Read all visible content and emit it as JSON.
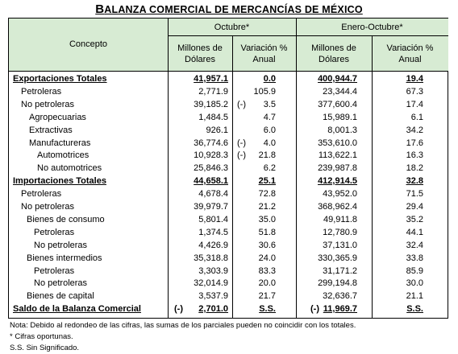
{
  "title": "BALANZA COMERCIAL DE MERCANCÍAS DE MÉXICO",
  "table": {
    "header": {
      "concept": "Concepto",
      "periods": [
        "Octubre*",
        "Enero-Octubre*"
      ],
      "columns": [
        "Millones de Dólares",
        "Variación % Anual",
        "Millones de Dólares",
        "Variación % Anual"
      ]
    },
    "rows": [
      {
        "label": "Exportaciones Totales",
        "cells": [
          "41,957.1",
          "0.0",
          "400,944.7",
          "19.4"
        ]
      },
      {
        "label": "Petroleras",
        "cells": [
          "2,771.9",
          "105.9",
          "23,344.4",
          "67.3"
        ]
      },
      {
        "label": "No petroleras",
        "cells": [
          "39,185.2",
          {
            "prefix": "(-)",
            "text": "3.5"
          },
          "377,600.4",
          "17.4"
        ]
      },
      {
        "label": "Agropecuarias",
        "cells": [
          "1,484.5",
          "4.7",
          "15,989.1",
          "6.1"
        ]
      },
      {
        "label": "Extractivas",
        "cells": [
          "926.1",
          "6.0",
          "8,001.3",
          "34.2"
        ]
      },
      {
        "label": "Manufactureras",
        "cells": [
          "36,774.6",
          {
            "prefix": "(-)",
            "text": "4.0"
          },
          "353,610.0",
          "17.6"
        ]
      },
      {
        "label": "Automotrices",
        "cells": [
          "10,928.3",
          {
            "prefix": "(-)",
            "text": "21.8"
          },
          "113,622.1",
          "16.3"
        ]
      },
      {
        "label": "No automotrices",
        "cells": [
          "25,846.3",
          "6.2",
          "239,987.8",
          "18.2"
        ]
      },
      {
        "label": "Importaciones Totales",
        "cells": [
          "44,658.1",
          "25.1",
          "412,914.5",
          "32.8"
        ]
      },
      {
        "label": "Petroleras",
        "cells": [
          "4,678.4",
          "72.8",
          "43,952.0",
          "71.5"
        ]
      },
      {
        "label": "No petroleras",
        "cells": [
          "39,979.7",
          "21.2",
          "368,962.4",
          "29.4"
        ]
      },
      {
        "label": "Bienes de consumo",
        "cells": [
          "5,801.4",
          "35.0",
          "49,911.8",
          "35.2"
        ]
      },
      {
        "label": "Petroleras",
        "cells": [
          "1,374.5",
          "51.8",
          "12,780.9",
          "44.1"
        ]
      },
      {
        "label": "No petroleras",
        "cells": [
          "4,426.9",
          "30.6",
          "37,131.0",
          "32.4"
        ]
      },
      {
        "label": "Bienes intermedios",
        "cells": [
          "35,318.8",
          "24.0",
          "330,365.9",
          "33.8"
        ]
      },
      {
        "label": "Petroleras",
        "cells": [
          "3,303.9",
          "83.3",
          "31,171.2",
          "85.9"
        ]
      },
      {
        "label": "No petroleras",
        "cells": [
          "32,014.9",
          "20.0",
          "299,194.8",
          "30.0"
        ]
      },
      {
        "label": "Bienes de capital",
        "cells": [
          "3,537.9",
          "21.7",
          "32,636.7",
          "21.1"
        ]
      },
      {
        "label": "Saldo de la Balanza Comercial",
        "cells": [
          {
            "prefix": "(-)",
            "text": "2,701.0"
          },
          "S.S.",
          {
            "prefix": "(-)",
            "text": "11,969.7"
          },
          "S.S."
        ]
      }
    ]
  },
  "notes": [
    "Nota: Debido al redondeo de las cifras, las sumas de los parciales pueden no coincidir con los totales.",
    "* Cifras oportunas.",
    "S.S. Sin Significado."
  ]
}
